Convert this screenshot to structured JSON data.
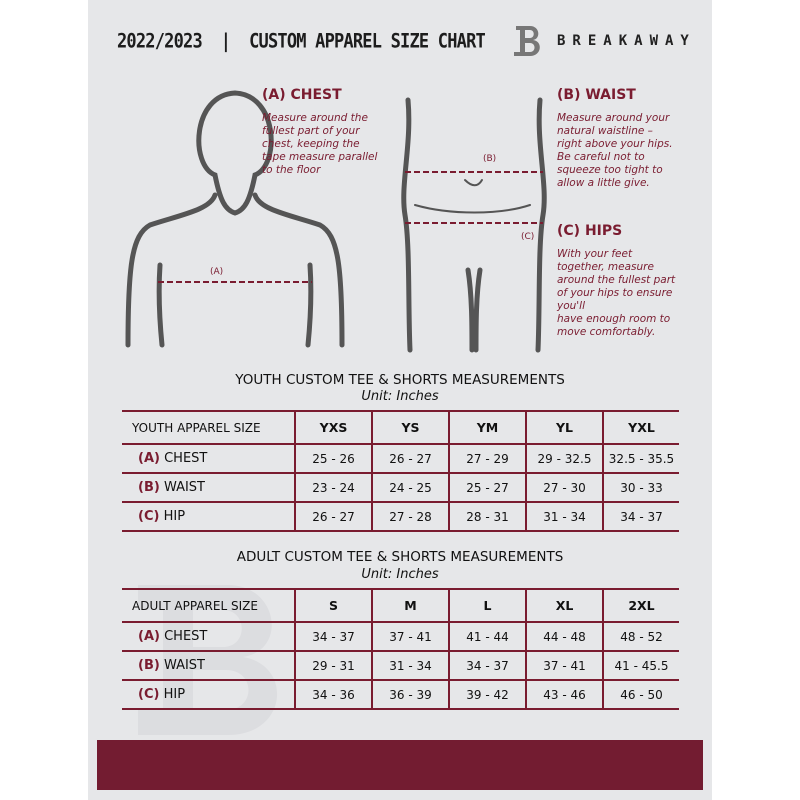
{
  "header": {
    "title": "2022/2023  |  CUSTOM APPAREL SIZE CHART",
    "brand": "BREAKAWAY",
    "logo_letter": "B"
  },
  "measures": {
    "chest": {
      "heading": "(A) CHEST",
      "marker": "(A)",
      "lines": [
        "Measure around the",
        "fullest part of your",
        "chest, keeping the",
        "tape measure parallel",
        "to the floor"
      ]
    },
    "waist": {
      "heading": "(B) WAIST",
      "marker": "(B)",
      "lines": [
        "Measure around your",
        "natural waistline –",
        "right above your hips.",
        "Be careful not to",
        "squeeze too tight to",
        "allow a little give."
      ]
    },
    "hips": {
      "heading": "(C) HIPS",
      "marker": "(C)",
      "lines": [
        "With your feet",
        "together, measure",
        "around the fullest part",
        "of your hips to ensure",
        "you'll",
        "have enough room to",
        "move comfortably."
      ]
    }
  },
  "youth": {
    "title": "YOUTH CUSTOM TEE & SHORTS MEASUREMENTS",
    "unit": "Unit: Inches",
    "header": [
      "YOUTH APPAREL SIZE",
      "YXS",
      "YS",
      "YM",
      "YL",
      "YXL"
    ],
    "rows": [
      {
        "letter": "(A)",
        "name": "CHEST",
        "values": [
          "25 - 26",
          "26 - 27",
          "27 - 29",
          "29 - 32.5",
          "32.5 - 35.5"
        ]
      },
      {
        "letter": "(B)",
        "name": "WAIST",
        "values": [
          "23 - 24",
          "24 - 25",
          "25 - 27",
          "27 - 30",
          "30 - 33"
        ]
      },
      {
        "letter": "(C)",
        "name": "HIP",
        "values": [
          "26 - 27",
          "27 - 28",
          "28 - 31",
          "31 - 34",
          "34 - 37"
        ]
      }
    ]
  },
  "adult": {
    "title": "ADULT CUSTOM TEE & SHORTS MEASUREMENTS",
    "unit": "Unit: Inches",
    "header": [
      "ADULT APPAREL SIZE",
      "S",
      "M",
      "L",
      "XL",
      "2XL"
    ],
    "rows": [
      {
        "letter": "(A)",
        "name": "CHEST",
        "values": [
          "34 - 37",
          "37 - 41",
          "41 - 44",
          "44 - 48",
          "48 - 52"
        ]
      },
      {
        "letter": "(B)",
        "name": "WAIST",
        "values": [
          "29 - 31",
          "31 - 34",
          "34 - 37",
          "37 - 41",
          "41 - 45.5"
        ]
      },
      {
        "letter": "(C)",
        "name": "HIP",
        "values": [
          "34 - 36",
          "36 - 39",
          "39 - 42",
          "43 - 46",
          "46 - 50"
        ]
      }
    ]
  },
  "colors": {
    "accent": "#7a1c30",
    "band": "#731c31",
    "background": "#e6e7e9"
  }
}
